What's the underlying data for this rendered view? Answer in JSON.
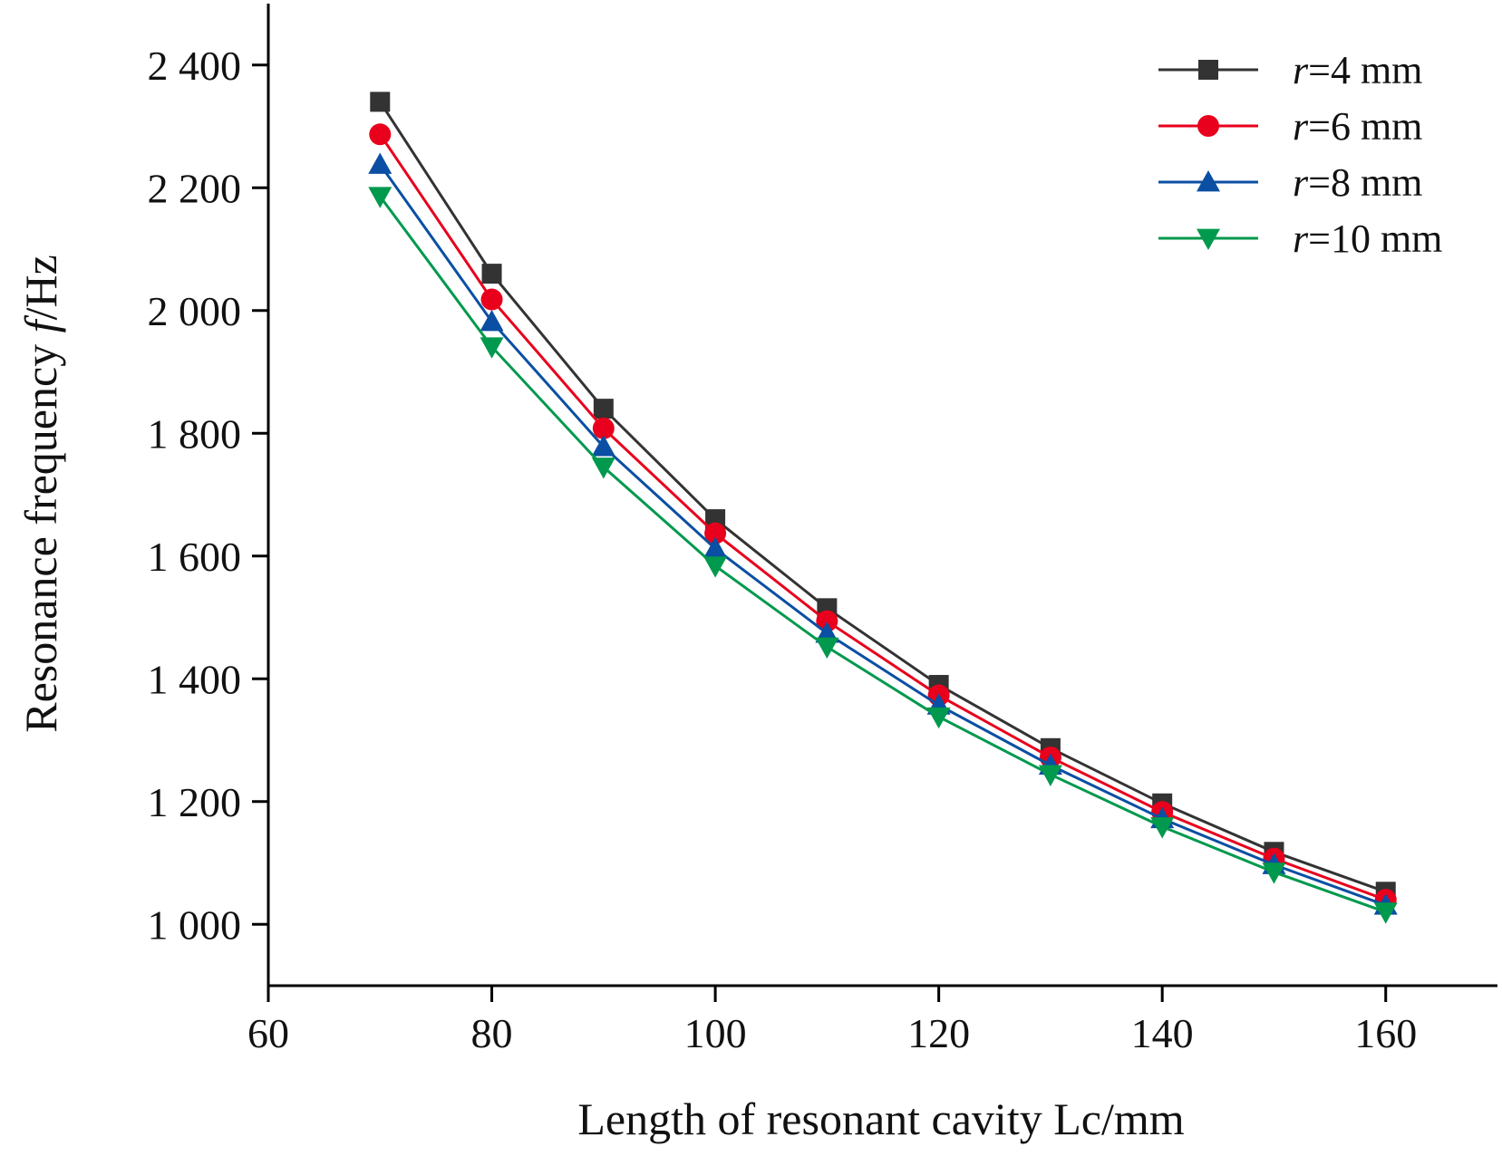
{
  "chart_data": {
    "type": "line",
    "title": "",
    "xlabel": "Length of resonant cavity Lc/mm",
    "ylabel_prefix": "Resonance frequency ",
    "ylabel_var": "f",
    "ylabel_suffix": "/Hz",
    "xlim": [
      60,
      170
    ],
    "ylim": [
      900,
      2500
    ],
    "x_ticks": [
      60,
      80,
      100,
      120,
      140,
      160
    ],
    "x_tick_labels": [
      "60",
      "80",
      "100",
      "120",
      "140",
      "160"
    ],
    "y_ticks": [
      1000,
      1200,
      1400,
      1600,
      1800,
      2000,
      2200,
      2400
    ],
    "y_tick_labels": [
      "1 000",
      "1 200",
      "1 400",
      "1 600",
      "1 800",
      "2 000",
      "2 200",
      "2 400"
    ],
    "grid": false,
    "legend_position": "top-right",
    "x": [
      70,
      80,
      90,
      100,
      110,
      120,
      130,
      140,
      150,
      160
    ],
    "series": [
      {
        "legend_var": "r",
        "legend_rest": "=4 mm",
        "color": "#333333",
        "marker": "square",
        "values": [
          2340,
          2060,
          1840,
          1660,
          1515,
          1390,
          1287,
          1197,
          1118,
          1053
        ]
      },
      {
        "legend_var": "r",
        "legend_rest": "=6 mm",
        "color": "#e8001c",
        "marker": "circle",
        "values": [
          2287,
          2018,
          1808,
          1637,
          1494,
          1373,
          1272,
          1183,
          1107,
          1040
        ]
      },
      {
        "legend_var": "r",
        "legend_rest": "=8 mm",
        "color": "#0a4fa3",
        "marker": "triangle-up",
        "values": [
          2238,
          1982,
          1778,
          1612,
          1474,
          1357,
          1259,
          1172,
          1097,
          1031
        ]
      },
      {
        "legend_var": "r",
        "legend_rest": "=10 mm",
        "color": "#00994d",
        "marker": "triangle-down",
        "values": [
          2186,
          1941,
          1745,
          1584,
          1452,
          1338,
          1244,
          1159,
          1085,
          1020
        ]
      }
    ]
  }
}
